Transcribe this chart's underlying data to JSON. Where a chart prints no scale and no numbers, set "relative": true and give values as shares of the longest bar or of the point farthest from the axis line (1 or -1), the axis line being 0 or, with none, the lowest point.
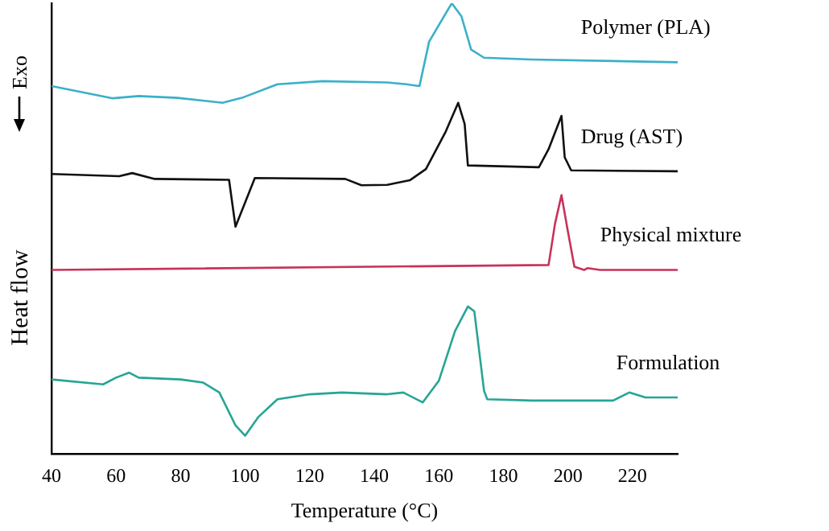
{
  "chart_data": {
    "type": "line",
    "relative": true,
    "xlabel": "Temperature (°C)",
    "ylabel": "Heat flow",
    "annotations": [
      "Exo"
    ],
    "xlim": [
      40,
      234
    ],
    "xticks": [
      40,
      60,
      80,
      100,
      120,
      140,
      160,
      180,
      200,
      220
    ],
    "legend": false,
    "marker": "none",
    "line_style": "solid",
    "series": [
      {
        "name": "Polymer (PLA)",
        "color": "#3ab0c8",
        "x": [
          40,
          59,
          67,
          79,
          93,
          99,
          110,
          124,
          144,
          150,
          154,
          157,
          164,
          167,
          170,
          174,
          189,
          234
        ],
        "values": [
          0.816,
          0.789,
          0.794,
          0.79,
          0.779,
          0.79,
          0.82,
          0.827,
          0.824,
          0.82,
          0.816,
          0.915,
          1,
          0.971,
          0.897,
          0.879,
          0.875,
          0.869
        ]
      },
      {
        "name": "Drug (AST)",
        "color": "#111111",
        "x": [
          40,
          61,
          65,
          72,
          95,
          97,
          103,
          131,
          136,
          144,
          151,
          156,
          162,
          166,
          168,
          169,
          191,
          194,
          198,
          199,
          201,
          234
        ],
        "values": [
          0.621,
          0.616,
          0.623,
          0.61,
          0.608,
          0.504,
          0.612,
          0.61,
          0.596,
          0.597,
          0.607,
          0.632,
          0.713,
          0.779,
          0.732,
          0.64,
          0.636,
          0.676,
          0.75,
          0.658,
          0.629,
          0.627
        ]
      },
      {
        "name": "Physical mixture",
        "color": "#c8325a",
        "x": [
          40,
          194,
          196,
          198,
          200,
          202,
          205,
          206,
          210,
          234
        ],
        "values": [
          0.408,
          0.419,
          0.511,
          0.574,
          0.493,
          0.415,
          0.408,
          0.412,
          0.408,
          0.408
        ]
      },
      {
        "name": "Formulation",
        "color": "#26a595",
        "x": [
          40,
          56,
          60,
          64,
          67,
          80,
          87,
          92,
          97,
          100,
          104,
          110,
          120,
          130,
          144,
          149,
          155,
          160,
          165,
          169,
          171,
          174,
          175,
          189,
          214,
          219,
          224,
          234
        ],
        "values": [
          0.165,
          0.154,
          0.169,
          0.18,
          0.169,
          0.165,
          0.158,
          0.136,
          0.063,
          0.04,
          0.081,
          0.121,
          0.132,
          0.136,
          0.132,
          0.136,
          0.114,
          0.162,
          0.272,
          0.327,
          0.316,
          0.14,
          0.121,
          0.118,
          0.118,
          0.136,
          0.125,
          0.125
        ]
      }
    ]
  }
}
